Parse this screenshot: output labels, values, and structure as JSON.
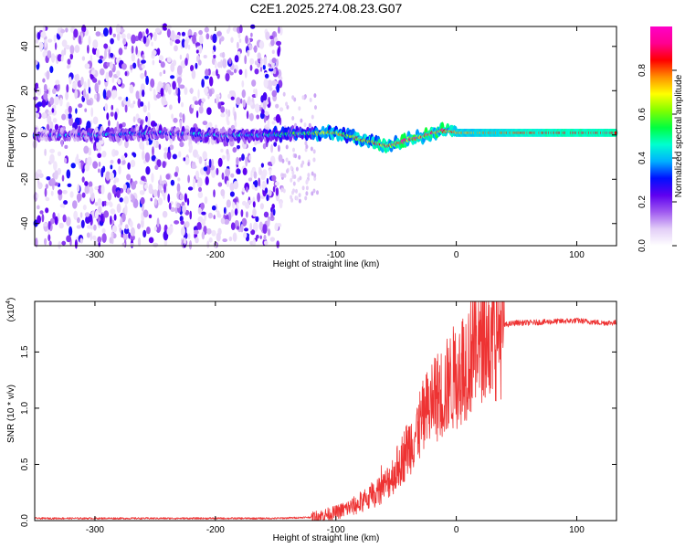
{
  "title": "C2E1.2025.274.08.23.G07",
  "chart_data": [
    {
      "type": "heatmap",
      "name": "spectrogram",
      "xlabel": "Height of straight line (km)",
      "ylabel": "Frequency (Hz)",
      "xlim": [
        -350,
        133
      ],
      "ylim": [
        -50,
        49
      ],
      "xticks": [
        -300,
        -200,
        -100,
        0,
        100
      ],
      "yticks": [
        40,
        20,
        0,
        -20,
        -40
      ],
      "colorbar": {
        "label": "Normalized spectral amplitude",
        "range": [
          0,
          1
        ],
        "ticks": [
          "0.0",
          "0.2",
          "0.4",
          "0.6",
          "0.8"
        ],
        "colors": [
          "#ffffff",
          "#e2cdf7",
          "#a05af0",
          "#5e00f0",
          "#0010ff",
          "#00b0ff",
          "#00ffd0",
          "#00ff40",
          "#80ff00",
          "#ffff00",
          "#ff9000",
          "#ff0000",
          "#ff0090",
          "#ff00c8"
        ]
      },
      "ridge": {
        "x": [
          -350,
          -300,
          -250,
          -200,
          -150,
          -120,
          -100,
          -80,
          -65,
          -55,
          -50,
          -40,
          -30,
          -20,
          -10,
          0,
          20,
          50,
          80,
          100,
          133
        ],
        "freq": [
          0,
          0,
          1,
          0,
          0,
          1,
          1,
          -2,
          -4,
          -5,
          -4,
          -2,
          -1,
          1,
          2,
          1,
          1,
          1,
          1,
          1,
          1
        ],
        "amp": [
          0.25,
          0.3,
          0.3,
          0.3,
          0.4,
          0.55,
          0.65,
          0.7,
          0.75,
          0.75,
          0.8,
          0.85,
          0.85,
          0.85,
          0.8,
          0.75,
          0.75,
          0.8,
          0.85,
          0.85,
          0.85
        ]
      },
      "noise_extent_km": [
        -350,
        -145
      ]
    },
    {
      "type": "line",
      "name": "snr",
      "xlabel": "Height of straight line (km)",
      "ylabel": "SNR (10 * v/v)",
      "scale_label": "(x10",
      "scale_exp": "4",
      "scale_close": ")",
      "xlim": [
        -350,
        133
      ],
      "ylim": [
        0,
        1.95
      ],
      "xticks": [
        -300,
        -200,
        -100,
        0,
        100
      ],
      "yticks": [
        "0.0",
        "0.5",
        "1.0",
        "1.5"
      ],
      "color": "#ee3333",
      "series": {
        "x": [
          -350,
          -200,
          -150,
          -120,
          -100,
          -80,
          -60,
          -50,
          -40,
          -30,
          -20,
          -10,
          0,
          10,
          20,
          30,
          40,
          50,
          60,
          80,
          100,
          120,
          133
        ],
        "y": [
          0.02,
          0.02,
          0.02,
          0.03,
          0.07,
          0.15,
          0.3,
          0.45,
          0.65,
          0.85,
          1.05,
          1.15,
          1.3,
          1.45,
          1.58,
          1.68,
          1.74,
          1.76,
          1.76,
          1.77,
          1.78,
          1.76,
          1.76
        ]
      }
    }
  ]
}
